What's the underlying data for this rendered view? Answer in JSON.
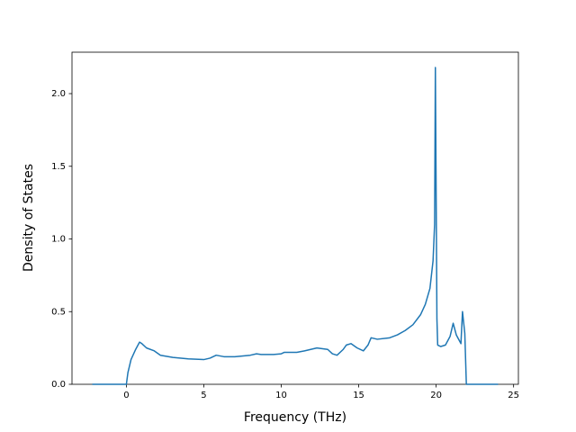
{
  "chart_data": {
    "type": "line",
    "x_label": "Frequency (THz)",
    "y_label": "Density of States",
    "x": [
      -2.2,
      -1,
      0,
      0.1,
      0.3,
      0.6,
      0.85,
      1.0,
      1.3,
      1.8,
      2.2,
      3,
      4,
      5,
      5.4,
      5.8,
      6.3,
      7,
      8,
      8.4,
      8.7,
      9.5,
      10,
      10.2,
      11,
      11.5,
      12.3,
      13,
      13.3,
      13.6,
      14,
      14.2,
      14.5,
      14.9,
      15.3,
      15.6,
      15.8,
      16.2,
      17,
      17.5,
      18,
      18.5,
      19,
      19.3,
      19.6,
      19.8,
      19.9,
      19.95,
      20.05,
      20.1,
      20.3,
      20.6,
      20.9,
      21.1,
      21.3,
      21.6,
      21.7,
      21.85,
      21.95,
      22.5,
      24
    ],
    "series": [
      {
        "color": "#1f77b4",
        "values": [
          0,
          0,
          0,
          0.08,
          0.17,
          0.24,
          0.29,
          0.28,
          0.25,
          0.23,
          0.2,
          0.185,
          0.175,
          0.17,
          0.18,
          0.2,
          0.19,
          0.19,
          0.2,
          0.21,
          0.205,
          0.205,
          0.21,
          0.22,
          0.22,
          0.23,
          0.25,
          0.24,
          0.21,
          0.2,
          0.24,
          0.27,
          0.28,
          0.25,
          0.23,
          0.27,
          0.32,
          0.31,
          0.32,
          0.34,
          0.37,
          0.41,
          0.48,
          0.55,
          0.66,
          0.85,
          1.1,
          2.18,
          0.45,
          0.27,
          0.26,
          0.27,
          0.33,
          0.42,
          0.34,
          0.28,
          0.5,
          0.35,
          0,
          0,
          0
        ]
      }
    ],
    "xlim": [
      -3.51,
      25.31
    ],
    "ylim": [
      0,
      2.285
    ],
    "xticks": [
      0,
      5,
      10,
      15,
      20,
      25
    ],
    "yticks": [
      {
        "value": 0,
        "label": "0.0"
      },
      {
        "value": 0.5,
        "label": "0.5"
      },
      {
        "value": 1,
        "label": "1.0"
      },
      {
        "value": 1.5,
        "label": "1.5"
      },
      {
        "value": 2,
        "label": "2.0"
      }
    ]
  }
}
